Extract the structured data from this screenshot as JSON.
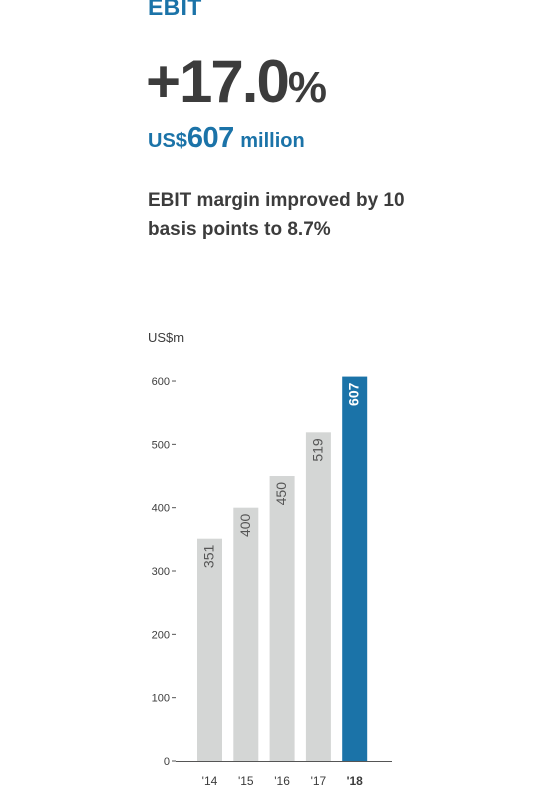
{
  "header": {
    "title": "EBIT",
    "headline_value": "+17.0",
    "headline_suffix": "%",
    "amount_currency": "US$",
    "amount_value": "607",
    "amount_unit": "million",
    "description": "EBIT margin improved by 10 basis points to 8.7%"
  },
  "colors": {
    "accent": "#1b73a8",
    "bar_grey": "#d4d6d5",
    "text_dark": "#3c3c3c",
    "axis": "#555555"
  },
  "chart_data": {
    "type": "bar",
    "ylabel": "US$m",
    "categories": [
      "'14",
      "'15",
      "'16",
      "'17",
      "'18"
    ],
    "values": [
      351,
      400,
      450,
      519,
      607
    ],
    "highlight_index": 4,
    "ylim": [
      0,
      600
    ],
    "yticks": [
      0,
      100,
      200,
      300,
      400,
      500,
      600
    ],
    "data_labels": [
      "351",
      "400",
      "450",
      "519",
      "607"
    ],
    "grid": false,
    "legend": "none"
  }
}
